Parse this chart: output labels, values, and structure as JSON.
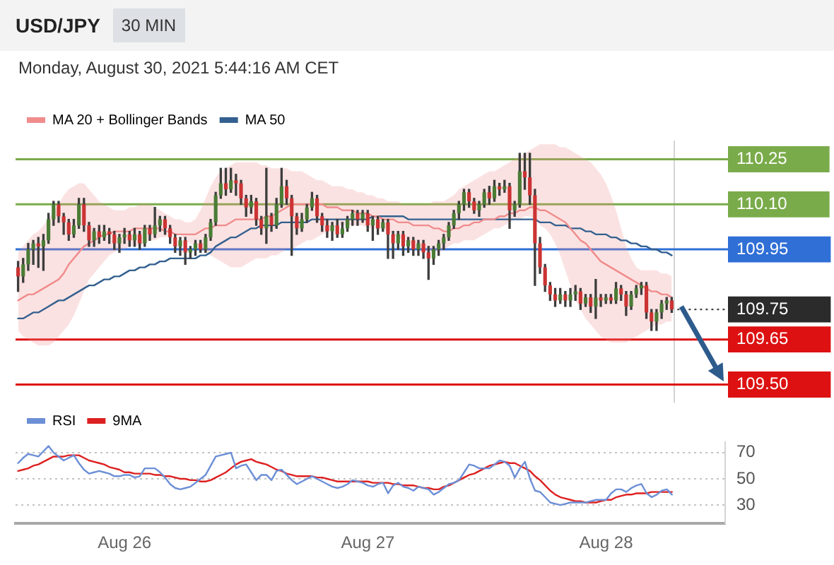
{
  "chart_data": [
    {
      "type": "candlestick",
      "title": "USD/JPY",
      "subtitle": "Monday, August 30, 2021 5:44:16 AM CET",
      "annotations": [
        "30 MIN"
      ],
      "categories": [
        null,
        null,
        null,
        null,
        null,
        null,
        null,
        null,
        null,
        null,
        null,
        null,
        null,
        null,
        null,
        null,
        null,
        null,
        null,
        null,
        null,
        null,
        null,
        null,
        null,
        null,
        null,
        null,
        null,
        null,
        null,
        null,
        null,
        null,
        null,
        null,
        null,
        null,
        null,
        null,
        null,
        null,
        null,
        null,
        null,
        null,
        null,
        null,
        null,
        null,
        null,
        null,
        null,
        null,
        null,
        null,
        null,
        null,
        null,
        null,
        null,
        null,
        null,
        null,
        null,
        null,
        null,
        null,
        null,
        null,
        null,
        null,
        null,
        null,
        null,
        null,
        null,
        null,
        null,
        null,
        null,
        null,
        null,
        null,
        null,
        null,
        null,
        null,
        null,
        null,
        null,
        null,
        null,
        null,
        null,
        null,
        null,
        null,
        null,
        null,
        null,
        null,
        null,
        null,
        null,
        null,
        null,
        null,
        null,
        null,
        null,
        null,
        null,
        null,
        null,
        null,
        null,
        null,
        null,
        null,
        null,
        null,
        null,
        null,
        null,
        null,
        null,
        null,
        null,
        null
      ],
      "ohlc": [
        [
          109.89,
          109.91,
          109.81,
          109.86
        ],
        [
          109.86,
          109.92,
          109.84,
          109.9
        ],
        [
          109.9,
          109.97,
          109.88,
          109.95
        ],
        [
          109.95,
          109.98,
          109.9,
          109.97
        ],
        [
          109.97,
          109.99,
          109.89,
          109.96
        ],
        [
          109.96,
          110,
          109.88,
          109.98
        ],
        [
          109.98,
          110.07,
          109.97,
          110.05
        ],
        [
          110.05,
          110.11,
          110.03,
          110.1
        ],
        [
          110.1,
          110.11,
          110.04,
          110.06
        ],
        [
          110.06,
          110.07,
          110,
          110.04
        ],
        [
          110.04,
          110.05,
          109.98,
          110
        ],
        [
          110,
          110.05,
          109.99,
          110.03
        ],
        [
          110.03,
          110.12,
          110.02,
          110.1
        ],
        [
          110.1,
          110.12,
          110.01,
          110.03
        ],
        [
          110.03,
          110.04,
          109.96,
          109.98
        ],
        [
          109.98,
          110.02,
          109.96,
          110.01
        ],
        [
          110.01,
          110.03,
          109.97,
          109.99
        ],
        [
          109.99,
          110.03,
          109.98,
          110.01
        ],
        [
          110.01,
          110.02,
          109.97,
          110
        ],
        [
          110,
          110.01,
          109.95,
          109.97
        ],
        [
          109.97,
          110,
          109.94,
          109.99
        ],
        [
          109.99,
          110.02,
          109.97,
          110
        ],
        [
          110,
          110.01,
          109.96,
          109.98
        ],
        [
          109.98,
          110.02,
          109.96,
          110
        ],
        [
          110,
          110.01,
          109.95,
          109.97
        ],
        [
          109.97,
          110.03,
          109.96,
          110.02
        ],
        [
          110.02,
          110.03,
          109.98,
          110
        ],
        [
          110,
          110.09,
          109.99,
          110.03
        ],
        [
          110.03,
          110.06,
          110.01,
          110.05
        ],
        [
          110.05,
          110.06,
          110,
          110.02
        ],
        [
          110.02,
          110.03,
          109.97,
          109.99
        ],
        [
          109.99,
          110,
          109.94,
          109.96
        ],
        [
          109.96,
          109.99,
          109.93,
          109.98
        ],
        [
          109.98,
          109.99,
          109.9,
          109.94
        ],
        [
          109.94,
          109.96,
          109.92,
          109.95
        ],
        [
          109.95,
          109.98,
          109.93,
          109.97
        ],
        [
          109.97,
          109.98,
          109.94,
          109.95
        ],
        [
          109.95,
          110,
          109.94,
          109.99
        ],
        [
          109.99,
          110.05,
          109.98,
          110.04
        ],
        [
          110.04,
          110.14,
          110.03,
          110.13
        ],
        [
          110.13,
          110.22,
          110.12,
          110.17
        ],
        [
          110.17,
          110.22,
          110.13,
          110.15
        ],
        [
          110.15,
          110.22,
          110.14,
          110.18
        ],
        [
          110.18,
          110.2,
          110.13,
          110.17
        ],
        [
          110.17,
          110.18,
          110.1,
          110.12
        ],
        [
          110.12,
          110.13,
          110.06,
          110.09
        ],
        [
          110.09,
          110.13,
          110.07,
          110.11
        ],
        [
          110.11,
          110.12,
          110.03,
          110.05
        ],
        [
          110.05,
          110.06,
          110,
          110.02
        ],
        [
          110.02,
          110.22,
          109.97,
          110.06
        ],
        [
          110.06,
          110.07,
          110.01,
          110.03
        ],
        [
          110.03,
          110.12,
          110.02,
          110.1
        ],
        [
          110.1,
          110.22,
          110.09,
          110.16
        ],
        [
          110.16,
          110.18,
          110.1,
          110.12
        ],
        [
          110.12,
          110.13,
          109.93,
          110.06
        ],
        [
          110.06,
          110.07,
          110,
          110.02
        ],
        [
          110.02,
          110.07,
          110.01,
          110.05
        ],
        [
          110.05,
          110.1,
          110.04,
          110.09
        ],
        [
          110.09,
          110.14,
          110.08,
          110.12
        ],
        [
          110.12,
          110.13,
          110.04,
          110.06
        ],
        [
          110.06,
          110.07,
          110.01,
          110.03
        ],
        [
          110.03,
          110.05,
          109.99,
          110.01
        ],
        [
          110.01,
          110.04,
          109.98,
          110.03
        ],
        [
          110.03,
          110.05,
          109.99,
          110
        ],
        [
          110,
          110.04,
          109.99,
          110.02
        ],
        [
          110.02,
          110.06,
          110.01,
          110.05
        ],
        [
          110.05,
          110.08,
          110.03,
          110.07
        ],
        [
          110.07,
          110.08,
          110.03,
          110.05
        ],
        [
          110.05,
          110.08,
          110.04,
          110.07
        ],
        [
          110.07,
          110.08,
          110.01,
          110.03
        ],
        [
          110.03,
          110.06,
          109.98,
          110.05
        ],
        [
          110.05,
          110.06,
          110,
          110.02
        ],
        [
          110.02,
          110.05,
          110.01,
          110.04
        ],
        [
          110.04,
          110.05,
          109.92,
          110
        ],
        [
          110,
          110.01,
          109.92,
          109.97
        ],
        [
          109.97,
          110.01,
          109.95,
          110
        ],
        [
          110,
          110.01,
          109.93,
          109.96
        ],
        [
          109.96,
          109.99,
          109.94,
          109.98
        ],
        [
          109.98,
          109.99,
          109.93,
          109.95
        ],
        [
          109.95,
          109.98,
          109.93,
          109.97
        ],
        [
          109.97,
          109.98,
          109.92,
          109.94
        ],
        [
          109.94,
          109.96,
          109.85,
          109.92
        ],
        [
          109.92,
          109.96,
          109.9,
          109.95
        ],
        [
          109.95,
          109.98,
          109.93,
          109.97
        ],
        [
          109.97,
          110,
          109.95,
          109.99
        ],
        [
          109.99,
          110.04,
          109.98,
          110.03
        ],
        [
          110.03,
          110.08,
          110.02,
          110.07
        ],
        [
          110.07,
          110.11,
          110.05,
          110.1
        ],
        [
          110.1,
          110.15,
          110.08,
          110.14
        ],
        [
          110.14,
          110.15,
          110.09,
          110.11
        ],
        [
          110.11,
          110.12,
          110.07,
          110.08
        ],
        [
          110.08,
          110.11,
          110.06,
          110.1
        ],
        [
          110.1,
          110.15,
          110.09,
          110.14
        ],
        [
          110.14,
          110.16,
          110.1,
          110.12
        ],
        [
          110.12,
          110.18,
          110.11,
          110.16
        ],
        [
          110.16,
          110.17,
          110.13,
          110.15
        ],
        [
          110.15,
          110.18,
          110.14,
          110.16
        ],
        [
          110.16,
          110.17,
          110.02,
          110.08
        ],
        [
          110.08,
          110.11,
          110.06,
          110.1
        ],
        [
          110.1,
          110.27,
          110.09,
          110.21
        ],
        [
          110.21,
          110.27,
          110.15,
          110.19
        ],
        [
          110.19,
          110.27,
          110.1,
          110.13
        ],
        [
          110.13,
          110.15,
          109.83,
          109.97
        ],
        [
          109.97,
          109.99,
          109.87,
          109.89
        ],
        [
          109.89,
          109.9,
          109.81,
          109.83
        ],
        [
          109.83,
          109.84,
          109.78,
          109.8
        ],
        [
          109.8,
          109.82,
          109.76,
          109.78
        ],
        [
          109.78,
          109.82,
          109.77,
          109.8
        ],
        [
          109.8,
          109.81,
          109.76,
          109.78
        ],
        [
          109.78,
          109.82,
          109.76,
          109.8
        ],
        [
          109.8,
          109.83,
          109.78,
          109.81
        ],
        [
          109.81,
          109.82,
          109.75,
          109.77
        ],
        [
          109.77,
          109.8,
          109.76,
          109.79
        ],
        [
          109.79,
          109.8,
          109.74,
          109.76
        ],
        [
          109.76,
          109.85,
          109.72,
          109.79
        ],
        [
          109.79,
          109.8,
          109.76,
          109.78
        ],
        [
          109.78,
          109.8,
          109.77,
          109.79
        ],
        [
          109.79,
          109.8,
          109.77,
          109.78
        ],
        [
          109.78,
          109.84,
          109.77,
          109.82
        ],
        [
          109.82,
          109.83,
          109.78,
          109.8
        ],
        [
          109.8,
          109.81,
          109.73,
          109.76
        ],
        [
          109.76,
          109.81,
          109.75,
          109.8
        ],
        [
          109.8,
          109.83,
          109.79,
          109.82
        ],
        [
          109.82,
          109.84,
          109.8,
          109.83
        ],
        [
          109.83,
          109.84,
          109.72,
          109.74
        ],
        [
          109.74,
          109.75,
          109.68,
          109.71
        ],
        [
          109.71,
          109.75,
          109.68,
          109.74
        ],
        [
          109.74,
          109.78,
          109.72,
          109.77
        ],
        [
          109.77,
          109.79,
          109.75,
          109.78
        ],
        [
          109.78,
          109.79,
          109.74,
          109.75
        ]
      ],
      "colors": [
        "#cc3333",
        "#4a7c35",
        "#4a7c35",
        "#4a7c35",
        "#cc3333",
        "#4a7c35",
        "#4a7c35",
        "#4a7c35",
        "#cc3333",
        "#cc3333",
        "#cc3333",
        "#4a7c35",
        "#4a7c35",
        "#cc3333",
        "#cc3333",
        "#4a7c35",
        "#cc3333",
        "#4a7c35",
        "#cc3333",
        "#cc3333",
        "#4a7c35",
        "#4a7c35",
        "#cc3333",
        "#4a7c35",
        "#cc3333",
        "#4a7c35",
        "#cc3333",
        "#4a7c35",
        "#4a7c35",
        "#cc3333",
        "#cc3333",
        "#cc3333",
        "#4a7c35",
        "#cc3333",
        "#4a7c35",
        "#4a7c35",
        "#cc3333",
        "#4a7c35",
        "#4a7c35",
        "#4a7c35",
        "#4a7c35",
        "#cc3333",
        "#4a7c35",
        "#cc3333",
        "#cc3333",
        "#cc3333",
        "#4a7c35",
        "#cc3333",
        "#cc3333",
        "#4a7c35",
        "#cc3333",
        "#4a7c35",
        "#4a7c35",
        "#cc3333",
        "#cc3333",
        "#cc3333",
        "#4a7c35",
        "#4a7c35",
        "#4a7c35",
        "#cc3333",
        "#cc3333",
        "#cc3333",
        "#4a7c35",
        "#cc3333",
        "#4a7c35",
        "#4a7c35",
        "#4a7c35",
        "#cc3333",
        "#4a7c35",
        "#cc3333",
        "#4a7c35",
        "#cc3333",
        "#4a7c35",
        "#cc3333",
        "#cc3333",
        "#4a7c35",
        "#cc3333",
        "#4a7c35",
        "#cc3333",
        "#4a7c35",
        "#cc3333",
        "#cc3333",
        "#4a7c35",
        "#4a7c35",
        "#4a7c35",
        "#4a7c35",
        "#4a7c35",
        "#4a7c35",
        "#4a7c35",
        "#cc3333",
        "#cc3333",
        "#4a7c35",
        "#4a7c35",
        "#cc3333",
        "#4a7c35",
        "#cc3333",
        "#4a7c35",
        "#cc3333",
        "#4a7c35",
        "#4a7c35",
        "#cc3333",
        "#cc3333",
        "#cc3333",
        "#cc3333",
        "#cc3333",
        "#cc3333",
        "#cc3333",
        "#4a7c35",
        "#cc3333",
        "#4a7c35",
        "#4a7c35",
        "#cc3333",
        "#4a7c35",
        "#cc3333",
        "#4a7c35",
        "#cc3333",
        "#4a7c35",
        "#cc3333",
        "#4a7c35",
        "#cc3333",
        "#cc3333",
        "#4a7c35",
        "#4a7c35",
        "#4a7c35",
        "#cc3333",
        "#cc3333",
        "#4a7c35",
        "#4a7c35",
        "#4a7c35",
        "#cc3333"
      ],
      "series": [
        {
          "type": "line",
          "name": "MA 20 + Bollinger Bands",
          "color": "#f08c8c",
          "values": [
            109.78,
            109.79,
            109.8,
            109.8,
            109.81,
            109.82,
            109.83,
            109.84,
            109.85,
            109.87,
            109.9,
            109.92,
            109.94,
            109.96,
            109.97,
            109.98,
            109.99,
            110,
            110,
            110.01,
            110.01,
            110.01,
            110.01,
            110.02,
            110.02,
            110.02,
            110.02,
            110.02,
            110.02,
            110.01,
            110.01,
            110,
            110,
            110,
            110,
            110,
            110.01,
            110.02,
            110.02,
            110.03,
            110.03,
            110.03,
            110.04,
            110.05,
            110.05,
            110.05,
            110.05,
            110.05,
            110.05,
            110.06,
            110.06,
            110.07,
            110.08,
            110.09,
            110.1,
            110.1,
            110.1,
            110.1,
            110.1,
            110.1,
            110.1,
            110.09,
            110.09,
            110.09,
            110.08,
            110.08,
            110.08,
            110.07,
            110.07,
            110.07,
            110.06,
            110.06,
            110.05,
            110.05,
            110.05,
            110.04,
            110.04,
            110.04,
            110.03,
            110.03,
            110.03,
            110.03,
            110.02,
            110.02,
            110.01,
            110.01,
            110.02,
            110.02,
            110.03,
            110.03,
            110.04,
            110.04,
            110.05,
            110.05,
            110.05,
            110.06,
            110.06,
            110.07,
            110.07,
            110.08,
            110.08,
            110.09,
            110.09,
            110.08,
            110.08,
            110.07,
            110.06,
            110.05,
            110.04,
            110.02,
            110,
            109.98,
            109.97,
            109.95,
            109.93,
            109.91,
            109.9,
            109.89,
            109.88,
            109.87,
            109.86,
            109.85,
            109.84,
            109.83,
            109.82,
            109.81,
            109.81,
            109.8,
            109.8,
            109.79
          ],
          "upper": [
            109.94,
            109.96,
            109.98,
            110,
            110.01,
            110.03,
            110.05,
            110.08,
            110.1,
            110.13,
            110.15,
            110.16,
            110.17,
            110.17,
            110.15,
            110.13,
            110.11,
            110.1,
            110.09,
            110.08,
            110.08,
            110.08,
            110.09,
            110.09,
            110.1,
            110.1,
            110.1,
            110.09,
            110.08,
            110.07,
            110.06,
            110.05,
            110.05,
            110.04,
            110.04,
            110.05,
            110.08,
            110.12,
            110.16,
            110.19,
            110.21,
            110.22,
            110.23,
            110.24,
            110.24,
            110.24,
            110.24,
            110.24,
            110.23,
            110.23,
            110.22,
            110.22,
            110.22,
            110.22,
            110.21,
            110.21,
            110.21,
            110.2,
            110.19,
            110.18,
            110.18,
            110.17,
            110.16,
            110.16,
            110.16,
            110.15,
            110.15,
            110.14,
            110.14,
            110.13,
            110.13,
            110.12,
            110.12,
            110.11,
            110.11,
            110.11,
            110.1,
            110.1,
            110.1,
            110.1,
            110.1,
            110.1,
            110.11,
            110.11,
            110.11,
            110.12,
            110.13,
            110.15,
            110.16,
            110.17,
            110.18,
            110.19,
            110.2,
            110.21,
            110.21,
            110.22,
            110.23,
            110.24,
            110.25,
            110.26,
            110.27,
            110.28,
            110.29,
            110.3,
            110.3,
            110.3,
            110.3,
            110.29,
            110.29,
            110.28,
            110.27,
            110.26,
            110.25,
            110.24,
            110.22,
            110.2,
            110.17,
            110.13,
            110.08,
            110.02,
            109.96,
            109.92,
            109.89,
            109.88,
            109.88,
            109.88,
            109.88,
            109.87,
            109.87,
            109.86
          ],
          "lower": [
            109.68,
            109.66,
            109.65,
            109.64,
            109.63,
            109.63,
            109.63,
            109.64,
            109.66,
            109.68,
            109.7,
            109.73,
            109.77,
            109.81,
            109.85,
            109.87,
            109.89,
            109.91,
            109.93,
            109.94,
            109.95,
            109.95,
            109.96,
            109.96,
            109.96,
            109.97,
            109.98,
            109.98,
            109.99,
            109.99,
            110,
            110,
            110,
            109.98,
            109.97,
            109.96,
            109.95,
            109.94,
            109.93,
            109.92,
            109.91,
            109.9,
            109.89,
            109.89,
            109.89,
            109.9,
            109.91,
            109.92,
            109.92,
            109.92,
            109.93,
            109.93,
            109.94,
            109.95,
            109.95,
            109.96,
            109.97,
            109.98,
            109.98,
            109.99,
            110,
            110.01,
            110.02,
            110.03,
            110.03,
            110.03,
            110.03,
            110.03,
            110.03,
            110.02,
            110.02,
            110.02,
            110.02,
            110.01,
            110,
            109.99,
            109.98,
            109.97,
            109.96,
            109.95,
            109.95,
            109.94,
            109.94,
            109.94,
            109.95,
            109.96,
            109.97,
            109.97,
            109.98,
            109.98,
            109.98,
            109.99,
            110,
            110.01,
            110.02,
            110.02,
            110.03,
            110.04,
            110.05,
            110.05,
            110.06,
            110.06,
            110.05,
            110.03,
            110.02,
            110,
            109.97,
            109.93,
            109.88,
            109.83,
            109.78,
            109.75,
            109.72,
            109.7,
            109.68,
            109.66,
            109.65,
            109.64,
            109.64,
            109.64,
            109.64,
            109.65,
            109.66,
            109.67,
            109.68,
            109.69,
            109.7,
            109.7,
            109.71,
            109.71
          ]
        },
        {
          "type": "line",
          "name": "MA 50",
          "color": "#33608f",
          "values": [
            109.72,
            109.72,
            109.73,
            109.74,
            109.74,
            109.75,
            109.76,
            109.77,
            109.78,
            109.78,
            109.79,
            109.8,
            109.81,
            109.82,
            109.83,
            109.83,
            109.84,
            109.85,
            109.85,
            109.86,
            109.86,
            109.87,
            109.88,
            109.88,
            109.89,
            109.89,
            109.9,
            109.9,
            109.91,
            109.91,
            109.92,
            109.92,
            109.92,
            109.92,
            109.92,
            109.92,
            109.93,
            109.93,
            109.94,
            109.96,
            109.97,
            109.98,
            109.99,
            109.99,
            110,
            110.01,
            110.02,
            110.02,
            110.03,
            110.03,
            110.03,
            110.03,
            110.04,
            110.04,
            110.04,
            110.04,
            110.04,
            110.04,
            110.05,
            110.05,
            110.05,
            110.05,
            110.05,
            110.05,
            110.05,
            110.05,
            110.05,
            110.05,
            110.05,
            110.05,
            110.06,
            110.06,
            110.06,
            110.06,
            110.06,
            110.06,
            110.06,
            110.05,
            110.05,
            110.05,
            110.05,
            110.05,
            110.05,
            110.05,
            110.05,
            110.05,
            110.05,
            110.05,
            110.05,
            110.05,
            110.05,
            110.05,
            110.05,
            110.05,
            110.05,
            110.05,
            110.05,
            110.05,
            110.05,
            110.05,
            110.05,
            110.05,
            110.05,
            110.04,
            110.04,
            110.04,
            110.03,
            110.03,
            110.03,
            110.02,
            110.02,
            110.02,
            110.01,
            110.01,
            110,
            110,
            110,
            109.99,
            109.99,
            109.98,
            109.98,
            109.97,
            109.97,
            109.96,
            109.96,
            109.95,
            109.95,
            109.94,
            109.94,
            109.93
          ]
        }
      ],
      "ylim": [
        109.44,
        110.31
      ],
      "yticks": [
        {
          "value": 109.5,
          "label": "109.50"
        },
        {
          "value": 109.65,
          "label": "109.65"
        },
        109.75,
        109.95,
        {
          "value": 110.1,
          "label": "110.10"
        },
        110.25
      ],
      "ref_lines": [
        {
          "axis": "y",
          "value": 110.25,
          "color": "#7aab4a"
        },
        {
          "axis": "y",
          "value": 110.1,
          "color": "#7aab4a"
        },
        {
          "axis": "y",
          "value": 109.95,
          "color": "#2f6fd6"
        },
        {
          "axis": "y",
          "value": 109.65,
          "color": "#dd1111"
        },
        {
          "axis": "y",
          "value": 109.5,
          "color": "#dd1111"
        }
      ],
      "legend": "top left"
    },
    {
      "type": "line",
      "categories": [
        null,
        null,
        null,
        null,
        null,
        null,
        null,
        null,
        null,
        null,
        null,
        null,
        null,
        null,
        null,
        null,
        null,
        null,
        null,
        null,
        null,
        "Aug 26",
        null,
        null,
        null,
        null,
        null,
        null,
        null,
        null,
        null,
        null,
        null,
        null,
        null,
        null,
        null,
        null,
        null,
        null,
        null,
        null,
        null,
        null,
        null,
        null,
        null,
        null,
        null,
        null,
        null,
        null,
        null,
        null,
        null,
        null,
        null,
        null,
        null,
        null,
        null,
        null,
        null,
        null,
        null,
        null,
        null,
        null,
        null,
        "Aug 27",
        null,
        null,
        null,
        null,
        null,
        null,
        null,
        null,
        null,
        null,
        null,
        null,
        null,
        null,
        null,
        null,
        null,
        null,
        null,
        null,
        null,
        null,
        null,
        null,
        null,
        null,
        null,
        null,
        null,
        null,
        null,
        null,
        null,
        null,
        null,
        null,
        null,
        null,
        null,
        null,
        null,
        null,
        null,
        null,
        null,
        null,
        "Aug 28",
        null,
        null,
        null,
        null,
        null,
        null,
        null,
        null,
        null,
        null,
        null,
        null,
        null,
        null,
        null,
        null,
        null,
        null,
        null,
        null,
        null,
        null,
        null
      ],
      "series": [
        {
          "name": "RSI",
          "color": "#6c8fd6",
          "values": [
            62,
            66,
            69,
            68,
            67,
            71,
            75,
            70,
            67,
            64,
            66,
            68,
            62,
            57,
            54,
            55,
            56,
            55,
            54,
            52,
            52,
            53,
            53,
            51,
            52,
            58,
            58,
            58,
            55,
            51,
            46,
            43,
            42,
            43,
            44,
            47,
            50,
            53,
            60,
            67,
            68,
            69,
            70,
            58,
            60,
            61,
            55,
            49,
            53,
            53,
            49,
            56,
            57,
            53,
            49,
            46,
            48,
            50,
            52,
            50,
            48,
            46,
            44,
            43,
            44,
            46,
            49,
            48,
            47,
            45,
            44,
            46,
            47,
            39,
            45,
            47,
            44,
            43,
            41,
            44,
            43,
            42,
            38,
            40,
            43,
            46,
            47,
            49,
            55,
            61,
            60,
            58,
            58,
            58,
            61,
            64,
            63,
            60,
            51,
            58,
            63,
            50,
            41,
            40,
            36,
            32,
            31,
            30,
            31,
            32,
            32,
            32,
            32,
            33,
            34,
            34,
            34,
            39,
            42,
            42,
            40,
            43,
            45,
            46,
            39,
            36,
            38,
            41,
            42,
            38,
            null,
            null,
            null,
            null,
            null,
            null,
            null,
            null,
            null,
            null
          ]
        },
        {
          "name": "9MA",
          "color": "#dd2020",
          "values": [
            56,
            57,
            58,
            60,
            61,
            63,
            65,
            67,
            67,
            67,
            68,
            68,
            68,
            66,
            64,
            63,
            62,
            61,
            59,
            58,
            57,
            55,
            55,
            54,
            54,
            54,
            54,
            53,
            53,
            52,
            52,
            51,
            50,
            50,
            49,
            49,
            48,
            48,
            49,
            51,
            53,
            55,
            58,
            61,
            63,
            64,
            65,
            63,
            62,
            61,
            59,
            57,
            56,
            54,
            53,
            52,
            52,
            52,
            52,
            51,
            51,
            50,
            49,
            48,
            48,
            48,
            48,
            48,
            48,
            48,
            47,
            47,
            47,
            47,
            46,
            46,
            45,
            45,
            45,
            44,
            43,
            43,
            42,
            42,
            44,
            45,
            47,
            49,
            51,
            53,
            54,
            56,
            58,
            60,
            61,
            62,
            63,
            62,
            62,
            60,
            58,
            56,
            52,
            49,
            45,
            41,
            38,
            36,
            35,
            34,
            33,
            33,
            32,
            32,
            32,
            33,
            34,
            34,
            36,
            37,
            38,
            38,
            39,
            39,
            39,
            40,
            40,
            40,
            40,
            40,
            null,
            null,
            null,
            null,
            null,
            null,
            null,
            null,
            null,
            null
          ]
        }
      ],
      "ylim": [
        16,
        78
      ],
      "yticks": [
        30,
        50,
        70
      ],
      "grid": "y",
      "legend": "top left"
    }
  ]
}
